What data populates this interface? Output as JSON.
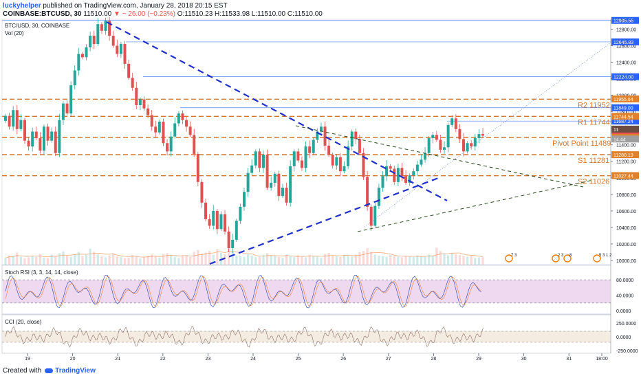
{
  "header": {
    "author": "luckyhelper",
    "published": "published on TradingView.com, January 28, 2018 20:15 EST",
    "symbol": "COINBASE:BTCUSD, 30",
    "close_now": "11510.00",
    "change": "− 26.00 (−0.23%)",
    "ohlc": "O:11510.23  H:11533.98  L:11510.00  C:11510.00"
  },
  "footer": {
    "created": "Created with",
    "brand": "TradingView"
  },
  "chart_data": {
    "type": "candlestick",
    "title": "BTC/USD, 30, COINBASE",
    "volume_label": "Vol (20)",
    "x_ticks": [
      "19",
      "20",
      "21",
      "22",
      "23",
      "24",
      "25",
      "26",
      "27",
      "28",
      "29",
      "30",
      "31",
      "18:00"
    ],
    "y_ticks": [
      10000,
      10200,
      10400,
      10600,
      10800,
      11000,
      11200,
      11400,
      11600,
      11800,
      12000,
      12200,
      12400,
      12600,
      12800
    ],
    "y_tick_labels": [
      "10000.00",
      "10200.00",
      "10400.00",
      "10600.00",
      "10800.00",
      "11000.00",
      "11200.00",
      "11400.00",
      "11600.00",
      "11800.00",
      "12000.00",
      "12200.00",
      "12400.00",
      "12600.00",
      "12800.00"
    ],
    "ylim": [
      9950,
      12920
    ],
    "level_lines": [
      {
        "name": "R2",
        "label": "R2 11952",
        "value": 11952
      },
      {
        "name": "R1",
        "label": "R1 11744",
        "value": 11744
      },
      {
        "name": "Pivot",
        "label": "Pivot Point 11489",
        "value": 11489
      },
      {
        "name": "S1",
        "label": "S1 11281",
        "value": 11281
      },
      {
        "name": "S2",
        "label": "S2 11026",
        "value": 11026
      }
    ],
    "resistance_lines": [
      {
        "value": 12905.55,
        "label": "12905.55"
      },
      {
        "value": 12645.83,
        "label": "12645.83"
      },
      {
        "value": 12224.0,
        "label": "12224.00"
      },
      {
        "value": 11849.0,
        "label": "11849.00"
      },
      {
        "value": 11687.24,
        "label": "11687.24"
      }
    ],
    "price_tags": [
      {
        "label": "11955.64",
        "value": 11955.64,
        "color": "#e0822b"
      },
      {
        "label": "11849.00",
        "value": 11849.0,
        "color": "#2962ff"
      },
      {
        "label": "11744.54",
        "value": 11744.54,
        "color": "#e0822b"
      },
      {
        "label": "11687.24",
        "value": 11687.24,
        "color": "#2962ff"
      },
      {
        "label": "11510.00",
        "value": 11510.0,
        "color": "#ef5350"
      },
      {
        "label": "11489.49",
        "value": 11489.49,
        "color": "#e0822b"
      },
      {
        "label": "11280.19",
        "value": 11280.19,
        "color": "#e0822b"
      },
      {
        "label": "11027.44",
        "value": 11027.44,
        "color": "#e0822b"
      }
    ],
    "price_tag_fragments": [
      "11",
      "14.44"
    ],
    "stoch": {
      "label": "Stoch RSI (3, 3, 14, 14, close)",
      "ticks": [
        "80.0000",
        "40.0000",
        "0.0000"
      ]
    },
    "cci": {
      "label": "CCI (20, close)",
      "ticks": [
        "250.0000",
        "0.0000",
        "-250.0000"
      ]
    },
    "event_badge_labels": [
      "7 3",
      "2 3",
      "8",
      "5 3 1 2"
    ],
    "series": {
      "close": [
        11750,
        11620,
        11820,
        11590,
        11700,
        11450,
        11380,
        11560,
        11480,
        11330,
        11620,
        11450,
        11560,
        11300,
        11700,
        11900,
        11780,
        12120,
        12300,
        12500,
        12460,
        12580,
        12720,
        12620,
        12860,
        12780,
        12900,
        12720,
        12600,
        12500,
        12620,
        12380,
        12210,
        12090,
        11880,
        11950,
        11840,
        11760,
        11620,
        11550,
        11680,
        11420,
        11320,
        11500,
        11660,
        11780,
        11700,
        11620,
        11520,
        11290,
        10950,
        10700,
        10500,
        10420,
        10600,
        10380,
        10560,
        10350,
        10150,
        10250,
        10480,
        10650,
        10830,
        11060,
        11150,
        11320,
        11120,
        11280,
        10880,
        10940,
        11050,
        10780,
        10880,
        10700,
        11140,
        11320,
        11210,
        11120,
        11380,
        11300,
        11460,
        11560,
        11620,
        11390,
        11280,
        11150,
        11250,
        11080,
        11140,
        11380,
        11560,
        11470,
        11300,
        11010,
        10650,
        10420,
        10660,
        10880,
        11020,
        11140,
        11110,
        10950,
        11120,
        11020,
        10940,
        11030,
        11080,
        11160,
        11220,
        11300,
        11480,
        11520,
        11460,
        11340,
        11370,
        11640,
        11720,
        11590,
        11470,
        11320,
        11420,
        11380,
        11480,
        11530,
        11510
      ],
      "volume": [
        30,
        42,
        38,
        55,
        36,
        28,
        33,
        40,
        35,
        48,
        32,
        29,
        45,
        38,
        52,
        60,
        41,
        36,
        48,
        57,
        39,
        44,
        72,
        58,
        46,
        38,
        33,
        42,
        51,
        36,
        34,
        29,
        31,
        44,
        39,
        28,
        35,
        40,
        46,
        37,
        33,
        48,
        52,
        41,
        36,
        30,
        43,
        38,
        35,
        58,
        66,
        49,
        55,
        62,
        44,
        71,
        53,
        48,
        80,
        61,
        42,
        38,
        35,
        47,
        40,
        33,
        36,
        44,
        52,
        39,
        41,
        35,
        30,
        46,
        38,
        34,
        42,
        37,
        33,
        45,
        39,
        36,
        31,
        48,
        53,
        41,
        38,
        35,
        44,
        40,
        37,
        45,
        56,
        62,
        75,
        58,
        46,
        41,
        38,
        35,
        43,
        39,
        36,
        33,
        40,
        37,
        35,
        42,
        38,
        36,
        45,
        40,
        77,
        62,
        48,
        42,
        52,
        47,
        43,
        38,
        36,
        41,
        30,
        33,
        35
      ]
    }
  }
}
